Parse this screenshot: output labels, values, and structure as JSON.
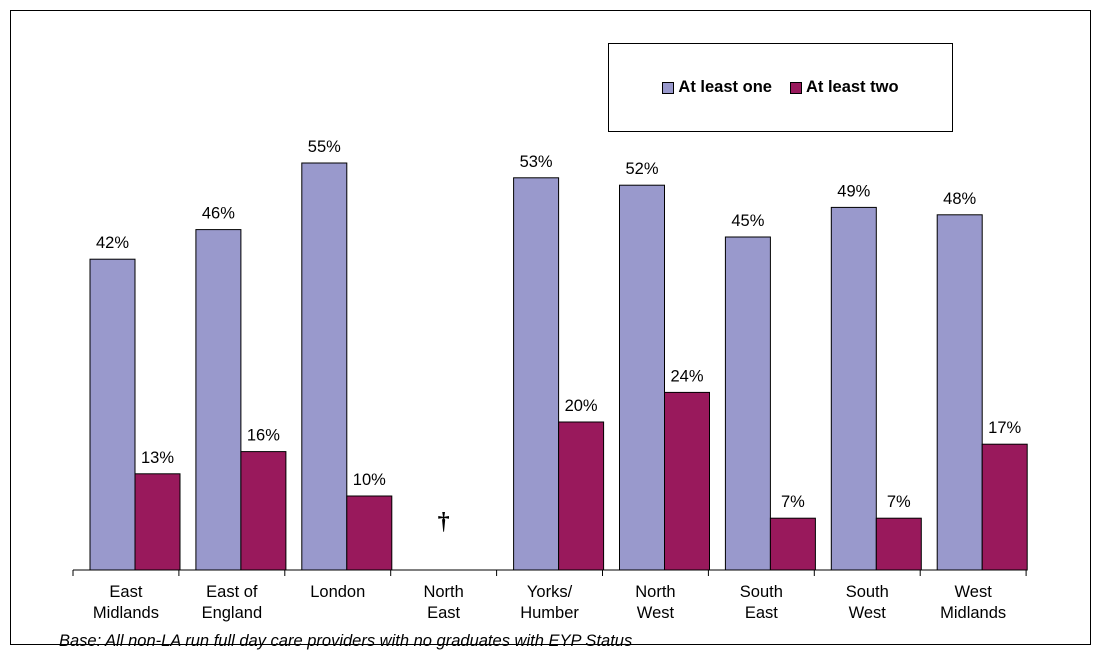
{
  "chart_data": {
    "type": "bar",
    "categories": [
      [
        "East",
        "Midlands"
      ],
      [
        "East of",
        "England"
      ],
      [
        "London"
      ],
      [
        "North",
        "East"
      ],
      [
        "Yorks/",
        "Humber"
      ],
      [
        "North",
        "West"
      ],
      [
        "South",
        "East"
      ],
      [
        "South",
        "West"
      ],
      [
        "West",
        "Midlands"
      ]
    ],
    "series": [
      {
        "name": "At least one",
        "color": "#9999cc",
        "values": [
          42,
          46,
          55,
          null,
          53,
          52,
          45,
          49,
          48
        ],
        "labels": [
          "42%",
          "46%",
          "55%",
          "",
          "53%",
          "52%",
          "45%",
          "49%",
          "48%"
        ]
      },
      {
        "name": "At least two",
        "color": "#99195c",
        "values": [
          13,
          16,
          10,
          null,
          20,
          24,
          7,
          7,
          17
        ],
        "labels": [
          "13%",
          "16%",
          "10%",
          "",
          "20%",
          "24%",
          "7%",
          "7%",
          "17%"
        ]
      }
    ],
    "ylim": [
      0,
      60
    ],
    "grid": false,
    "legend_position": "top-right",
    "annotations": [
      {
        "category_index": 3,
        "text": "†"
      }
    ]
  },
  "caption": "Base: All non-LA run full day care providers with no graduates with EYP Status"
}
